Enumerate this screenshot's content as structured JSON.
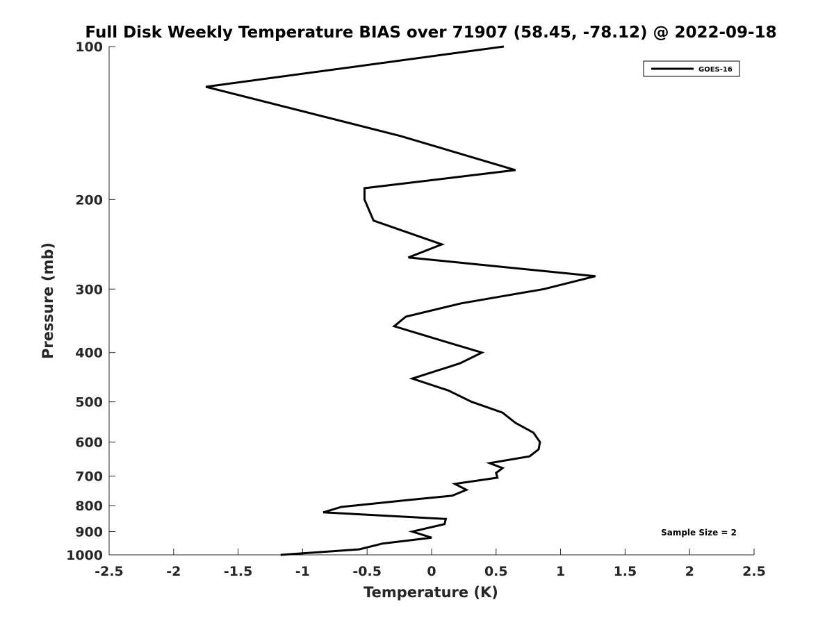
{
  "chart_data": {
    "type": "line",
    "title": "Full Disk Weekly Temperature BIAS over 71907 (58.45, -78.12) @ 2022-09-18",
    "xlabel": "Temperature (K)",
    "ylabel": "Pressure (mb)",
    "xlim": [
      -2.5,
      2.5
    ],
    "ylim": [
      100,
      1000
    ],
    "yscale": "log",
    "yreversed": true,
    "grid": false,
    "legend_placement": "top-right",
    "x_ticks": [
      -2.5,
      -2,
      -1.5,
      -1,
      -0.5,
      0,
      0.5,
      1,
      1.5,
      2,
      2.5
    ],
    "x_tick_labels": [
      "-2.5",
      "-2",
      "-1.5",
      "-1",
      "-0.5",
      "0",
      "0.5",
      "1",
      "1.5",
      "2",
      "2.5"
    ],
    "y_ticks": [
      100,
      200,
      300,
      400,
      500,
      600,
      700,
      800,
      900,
      1000
    ],
    "y_tick_labels": [
      "100",
      "200",
      "300",
      "400",
      "500",
      "600",
      "700",
      "800",
      "900",
      "1000"
    ],
    "series": [
      {
        "name": "GOES-16",
        "color": "#000000",
        "points": [
          {
            "x": 0.56,
            "p": 100
          },
          {
            "x": -1.75,
            "p": 120
          },
          {
            "x": -0.24,
            "p": 150
          },
          {
            "x": 0.65,
            "p": 175
          },
          {
            "x": -0.52,
            "p": 190
          },
          {
            "x": -0.52,
            "p": 200
          },
          {
            "x": -0.45,
            "p": 220
          },
          {
            "x": 0.08,
            "p": 245
          },
          {
            "x": -0.18,
            "p": 260
          },
          {
            "x": 1.27,
            "p": 283
          },
          {
            "x": 0.87,
            "p": 300
          },
          {
            "x": 0.23,
            "p": 320
          },
          {
            "x": -0.2,
            "p": 340
          },
          {
            "x": -0.29,
            "p": 355
          },
          {
            "x": 0.02,
            "p": 375
          },
          {
            "x": 0.39,
            "p": 400
          },
          {
            "x": 0.22,
            "p": 420
          },
          {
            "x": -0.15,
            "p": 450
          },
          {
            "x": 0.13,
            "p": 475
          },
          {
            "x": 0.31,
            "p": 500
          },
          {
            "x": 0.55,
            "p": 525
          },
          {
            "x": 0.65,
            "p": 550
          },
          {
            "x": 0.79,
            "p": 575
          },
          {
            "x": 0.84,
            "p": 600
          },
          {
            "x": 0.83,
            "p": 620
          },
          {
            "x": 0.76,
            "p": 640
          },
          {
            "x": 0.45,
            "p": 660
          },
          {
            "x": 0.55,
            "p": 675
          },
          {
            "x": 0.5,
            "p": 690
          },
          {
            "x": 0.51,
            "p": 705
          },
          {
            "x": 0.18,
            "p": 725
          },
          {
            "x": 0.27,
            "p": 745
          },
          {
            "x": 0.16,
            "p": 765
          },
          {
            "x": -0.18,
            "p": 780
          },
          {
            "x": -0.7,
            "p": 805
          },
          {
            "x": -0.84,
            "p": 825
          },
          {
            "x": 0.11,
            "p": 850
          },
          {
            "x": 0.1,
            "p": 870
          },
          {
            "x": -0.15,
            "p": 900
          },
          {
            "x": 0.0,
            "p": 925
          },
          {
            "x": -0.38,
            "p": 950
          },
          {
            "x": -0.56,
            "p": 975
          },
          {
            "x": -1.17,
            "p": 1000
          }
        ]
      }
    ],
    "annotations": [
      {
        "text": "Sample Size = 2",
        "placement": "bottom-right"
      }
    ]
  }
}
